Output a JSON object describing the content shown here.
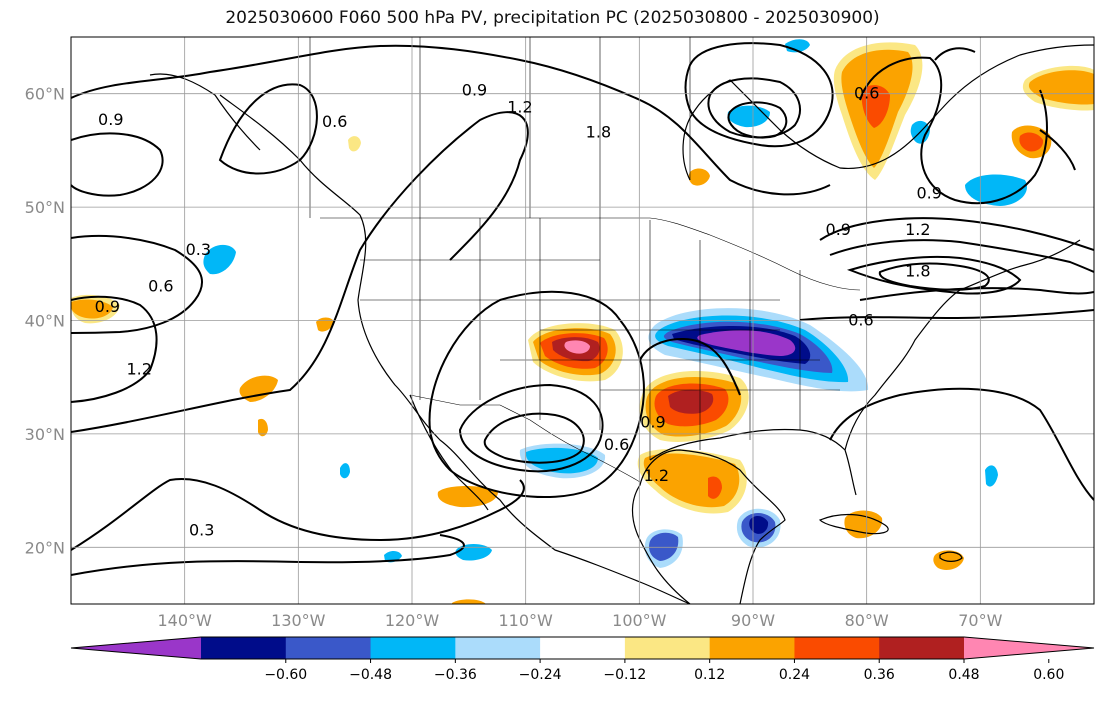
{
  "title": "2025030600 F060 500 hPa PV, precipitation PC (2025030800 - 2025030900)",
  "map": {
    "lon_range": [
      -150,
      -60
    ],
    "lat_range": [
      15,
      65
    ],
    "lat_ticks": [
      {
        "value": 60,
        "label": "60°N"
      },
      {
        "value": 50,
        "label": "50°N"
      },
      {
        "value": 40,
        "label": "40°N"
      },
      {
        "value": 30,
        "label": "30°N"
      },
      {
        "value": 20,
        "label": "20°N"
      }
    ],
    "lon_ticks": [
      {
        "value": -140,
        "label": "140°W"
      },
      {
        "value": -130,
        "label": "130°W"
      },
      {
        "value": -120,
        "label": "120°W"
      },
      {
        "value": -110,
        "label": "110°W"
      },
      {
        "value": -100,
        "label": "100°W"
      },
      {
        "value": -90,
        "label": "90°W"
      },
      {
        "value": -80,
        "label": "80°W"
      },
      {
        "value": -70,
        "label": "70°W"
      }
    ],
    "grid": true,
    "tick_label_color": "#8a8a8a"
  },
  "pv_contour_labels": [
    {
      "text": "0.9",
      "lon": -114.5,
      "lat": 60.3
    },
    {
      "text": "1.2",
      "lon": -110.5,
      "lat": 58.8
    },
    {
      "text": "1.8",
      "lon": -103.6,
      "lat": 56.6
    },
    {
      "text": "0.6",
      "lon": -126.8,
      "lat": 57.5
    },
    {
      "text": "0.9",
      "lon": -146.5,
      "lat": 57.7
    },
    {
      "text": "0.3",
      "lon": -138.8,
      "lat": 46.2
    },
    {
      "text": "0.6",
      "lon": -142.1,
      "lat": 43.0
    },
    {
      "text": "0.9",
      "lon": -146.8,
      "lat": 41.2
    },
    {
      "text": "1.2",
      "lon": -144.0,
      "lat": 35.7
    },
    {
      "text": "0.3",
      "lon": -138.5,
      "lat": 21.5
    },
    {
      "text": "0.9",
      "lon": -98.8,
      "lat": 31.0
    },
    {
      "text": "0.6",
      "lon": -102.0,
      "lat": 29.0
    },
    {
      "text": "1.2",
      "lon": -98.5,
      "lat": 26.3
    },
    {
      "text": "0.9",
      "lon": -82.5,
      "lat": 48.0
    },
    {
      "text": "1.2",
      "lon": -75.5,
      "lat": 48.0
    },
    {
      "text": "1.8",
      "lon": -75.5,
      "lat": 44.3
    },
    {
      "text": "0.6",
      "lon": -80.5,
      "lat": 40.0
    },
    {
      "text": "0.9",
      "lon": -74.5,
      "lat": 51.2
    },
    {
      "text": "0.6",
      "lon": -80.0,
      "lat": 60.0
    }
  ],
  "colorbar": {
    "colors": [
      "#9a36c9",
      "#000c8a",
      "#3a58c9",
      "#01b7f7",
      "#abdcfb",
      "#ffffff",
      "#fbe784",
      "#fba300",
      "#fa4b00",
      "#b02020",
      "#ff86b2"
    ],
    "tick_labels": [
      "−0.60",
      "−0.48",
      "−0.36",
      "−0.24",
      "−0.12",
      "0.12",
      "0.24",
      "0.36",
      "0.48",
      "0.60"
    ]
  }
}
